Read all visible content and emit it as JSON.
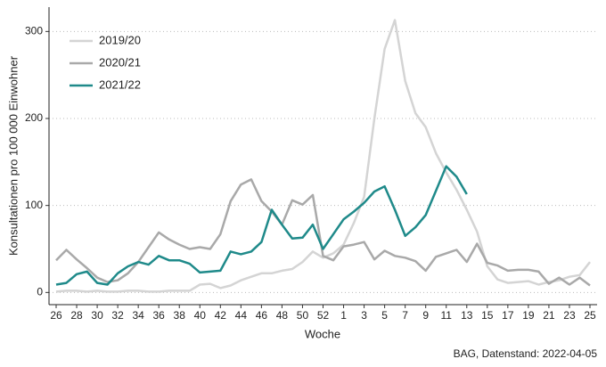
{
  "chart_data": {
    "type": "line",
    "x_label": "Woche",
    "y_label": "Konsultationen pro 100 000 Einwohner",
    "caption": "BAG, Datenstand: 2022-04-05",
    "categories": [
      "26",
      null,
      "28",
      null,
      "30",
      null,
      "32",
      null,
      "34",
      null,
      "36",
      null,
      "38",
      null,
      "40",
      null,
      "42",
      null,
      "44",
      null,
      "46",
      null,
      "48",
      null,
      "50",
      null,
      "52",
      null,
      "1",
      null,
      "3",
      null,
      "5",
      null,
      "7",
      null,
      "9",
      null,
      "11",
      null,
      "13",
      null,
      "15",
      null,
      "17",
      null,
      "19",
      null,
      "21",
      null,
      "23",
      null,
      "25"
    ],
    "series": [
      {
        "name": "2019/20",
        "color": "#d4d4d4",
        "values": [
          1,
          2,
          2,
          1,
          2,
          1,
          1,
          2,
          2,
          1,
          1,
          2,
          2,
          2,
          9,
          10,
          5,
          8,
          14,
          18,
          22,
          22,
          25,
          27,
          35,
          47,
          40,
          45,
          55,
          80,
          110,
          200,
          280,
          313,
          243,
          206,
          190,
          160,
          138,
          118,
          95,
          70,
          30,
          15,
          11,
          12,
          13,
          9,
          12,
          14,
          18,
          20,
          35
        ]
      },
      {
        "name": "2020/21",
        "color": "#a9a9a9",
        "values": [
          37,
          49,
          38,
          28,
          17,
          12,
          14,
          22,
          35,
          52,
          69,
          61,
          55,
          50,
          52,
          50,
          67,
          105,
          124,
          130,
          105,
          93,
          78,
          106,
          101,
          112,
          42,
          37,
          53,
          55,
          58,
          38,
          48,
          42,
          40,
          36,
          25,
          41,
          45,
          49,
          35,
          56,
          34,
          31,
          25,
          26,
          26,
          24,
          10,
          17,
          9,
          17,
          8
        ]
      },
      {
        "name": "2021/22",
        "color": "#1f8a8a",
        "values": [
          9,
          11,
          21,
          24,
          11,
          9,
          22,
          30,
          35,
          32,
          42,
          37,
          37,
          33,
          23,
          24,
          25,
          47,
          44,
          47,
          58,
          95,
          78,
          62,
          63,
          78,
          50,
          67,
          84,
          93,
          103,
          116,
          122,
          95,
          65,
          75,
          89,
          117,
          145,
          133,
          113,
          null,
          null,
          null,
          null,
          null,
          null,
          null,
          null,
          null,
          null,
          null,
          null
        ]
      }
    ],
    "ylim": [
      -14,
      328
    ],
    "yticks": [
      0,
      100,
      200,
      300
    ],
    "grid": true,
    "legend": "top-left"
  }
}
